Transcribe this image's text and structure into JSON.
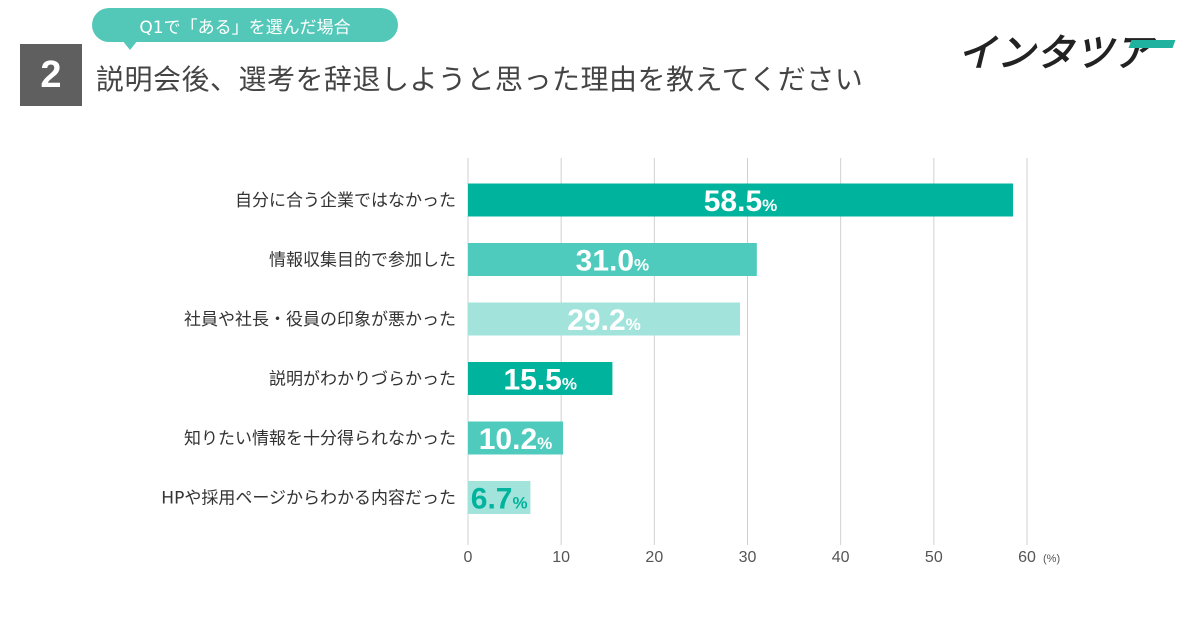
{
  "badge": {
    "number": "2"
  },
  "bubble": {
    "text": "Q1で「ある」を選んだ場合"
  },
  "question": {
    "text": "説明会後、選考を辞退しようと思った理由を教えてください"
  },
  "logo": {
    "text": "インタツア"
  },
  "colors": {
    "dark_teal": "#00b39d",
    "mid_teal": "#4ecbbd",
    "light_teal": "#a2e4dc",
    "grid": "#d0d0d0"
  },
  "chart_data": {
    "type": "bar",
    "orientation": "horizontal",
    "categories": [
      "自分に合う企業ではなかった",
      "情報収集目的で参加した",
      "社員や社長・役員の印象が悪かった",
      "説明がわかりづらかった",
      "知りたい情報を十分得られなかった",
      "HPや採用ページからわかる内容だった"
    ],
    "values": [
      58.5,
      31.0,
      29.2,
      15.5,
      10.2,
      6.7
    ],
    "value_labels": [
      "58.5",
      "31.0",
      "29.2",
      "15.5",
      "10.2",
      "6.7"
    ],
    "value_suffix": "%",
    "bar_colors": [
      "#00b39d",
      "#4ecbbd",
      "#a2e4dc",
      "#00b39d",
      "#4ecbbd",
      "#a2e4dc"
    ],
    "label_colors": [
      "#ffffff",
      "#ffffff",
      "#ffffff",
      "#ffffff",
      "#ffffff",
      "#00b39d"
    ],
    "xlim": [
      0,
      60
    ],
    "xticks": [
      0,
      10,
      20,
      30,
      40,
      50,
      60
    ],
    "xunit": "(%)",
    "grid": true,
    "legend": "none"
  }
}
